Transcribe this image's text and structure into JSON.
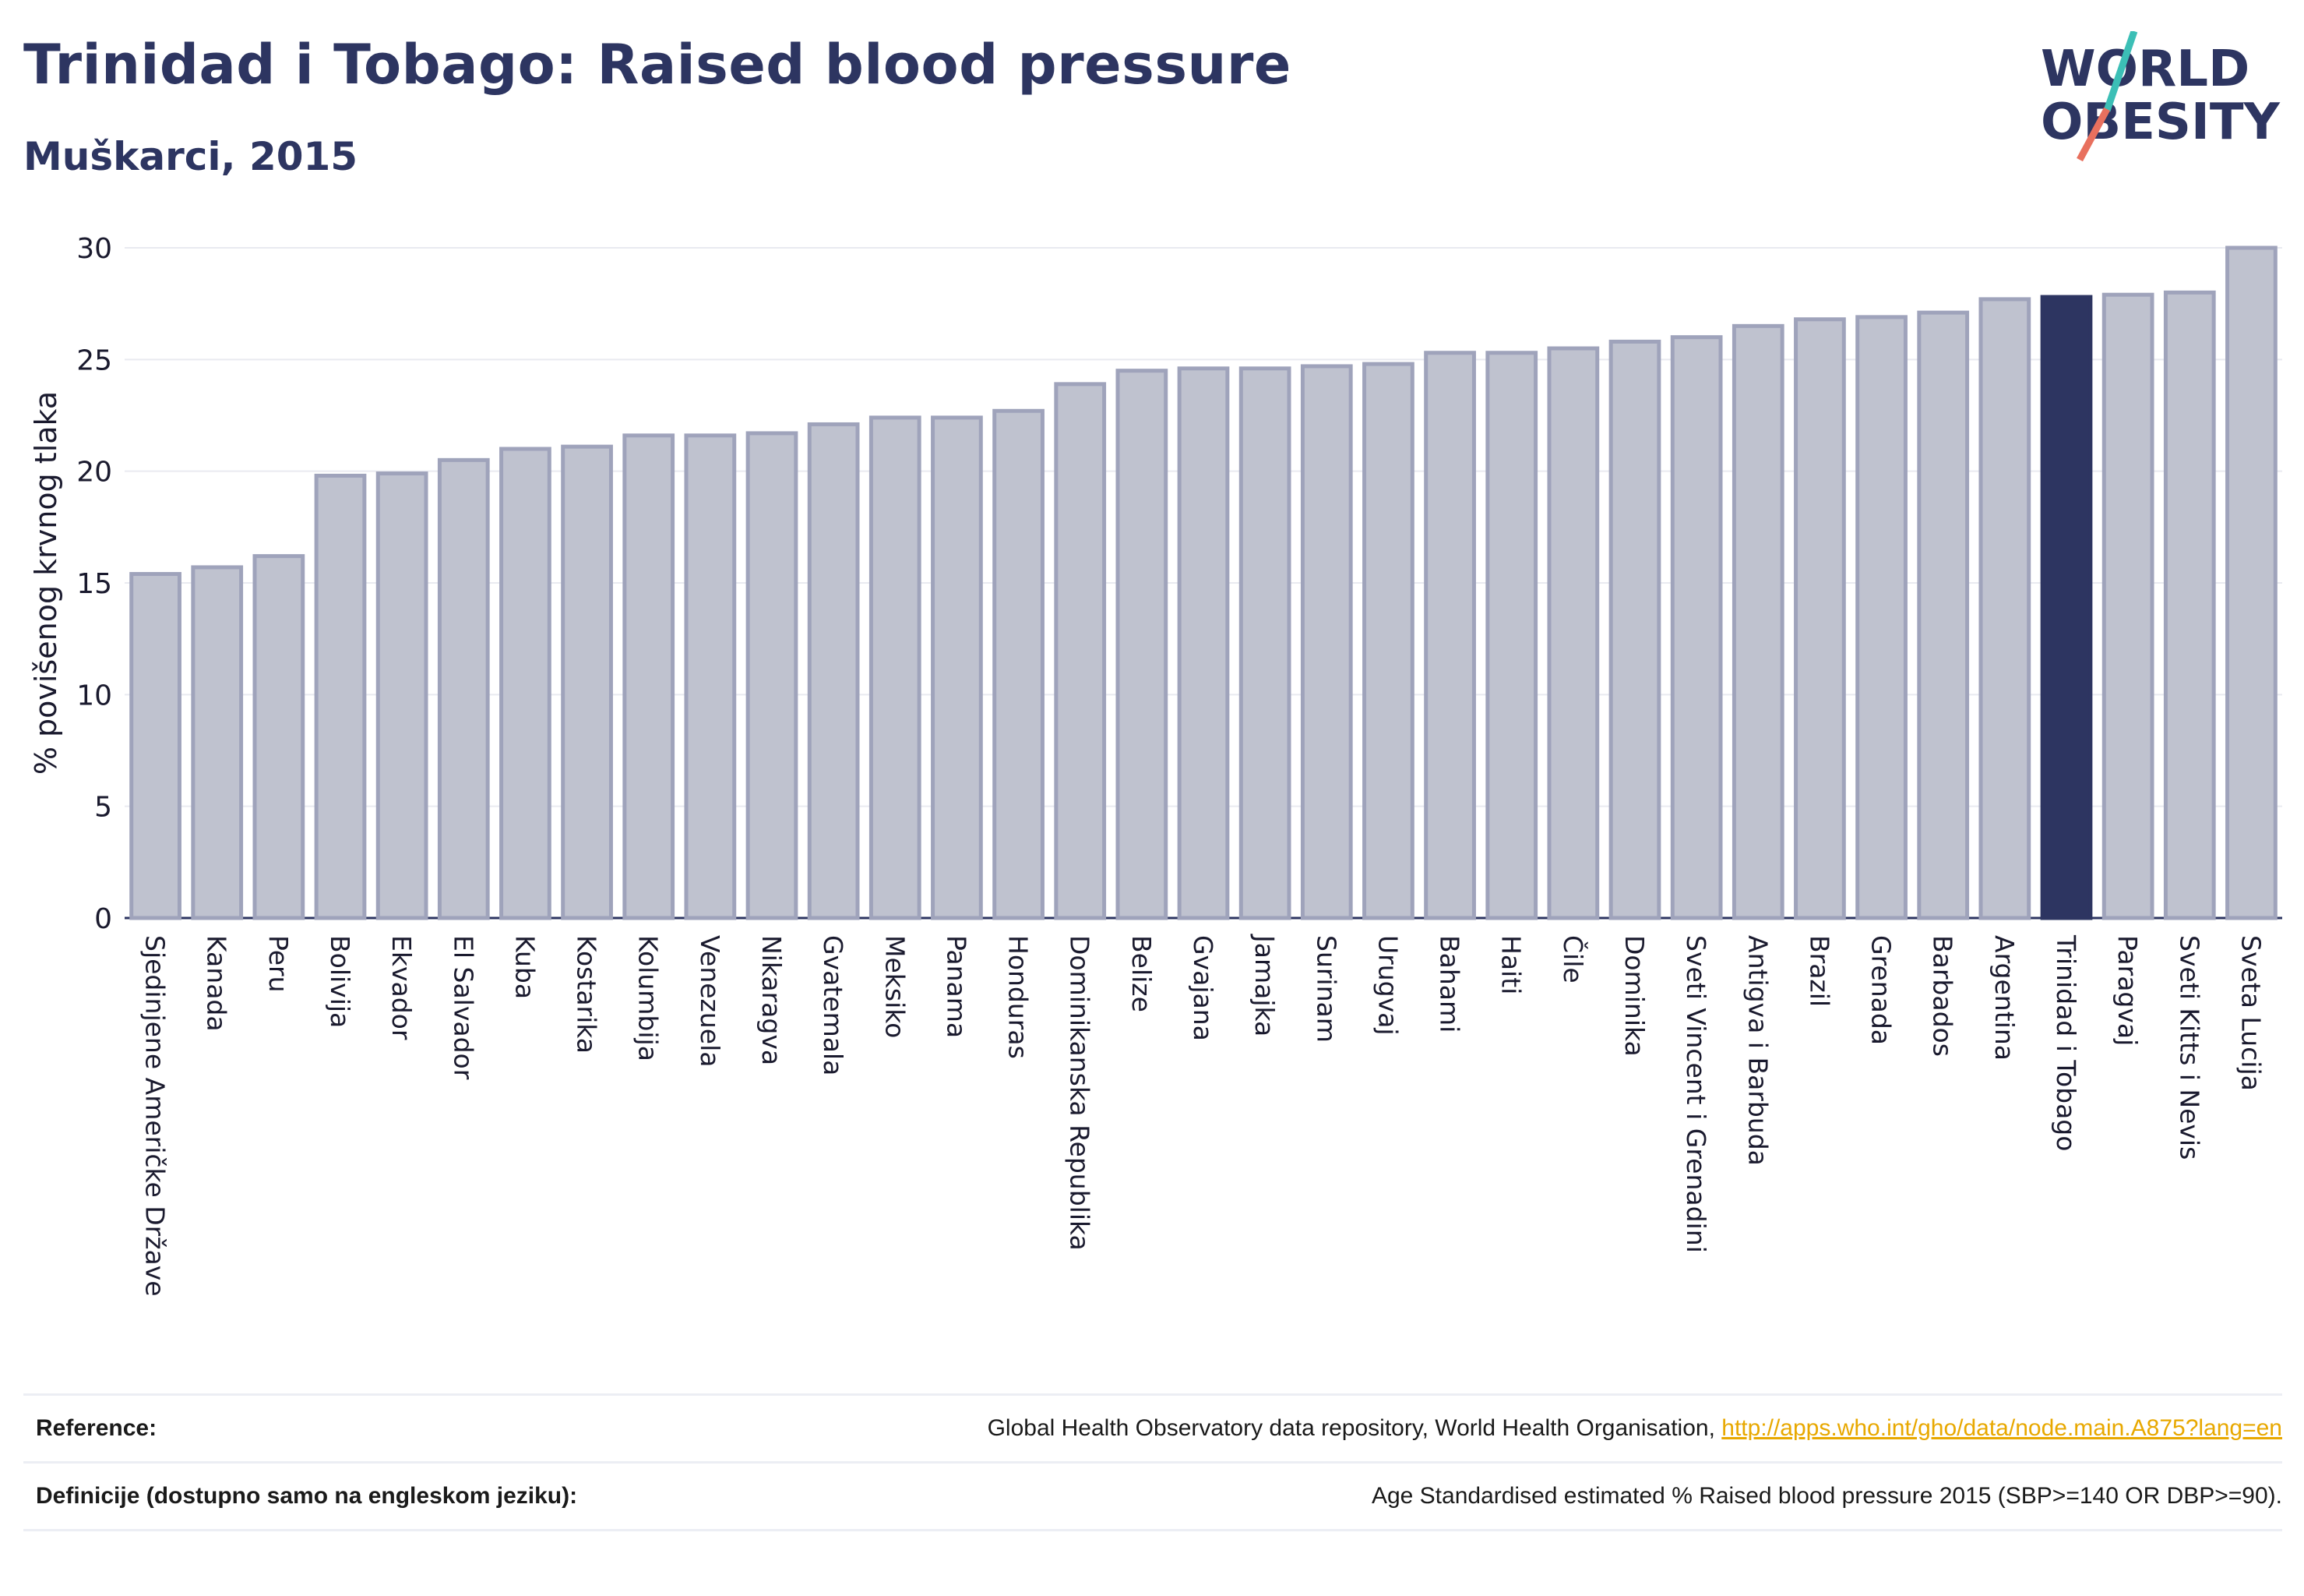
{
  "header": {
    "title": "Trinidad i Tobago: Raised blood pressure",
    "subtitle": "Muškarci, 2015"
  },
  "logo": {
    "line1": "WORLD",
    "line2": "OBESITY",
    "colors": {
      "text": "#2d3561",
      "slash_teal": "#3cbfb6",
      "slash_red": "#e8705e"
    }
  },
  "colors": {
    "bar_fill": "#bfc2cf",
    "bar_stroke": "#9fa3bb",
    "highlight_fill": "#2d3561",
    "axis_text": "#1a1a2e",
    "grid": "#e9eaf0"
  },
  "chart_data": {
    "type": "bar",
    "ylabel": "% povišenog krvnog tlaka",
    "ylim": [
      0,
      30
    ],
    "yticks": [
      0,
      5,
      10,
      15,
      20,
      25,
      30
    ],
    "grid": true,
    "highlight": "Trinidad i Tobago",
    "categories": [
      "Sjedinjene Američke Države",
      "Kanada",
      "Peru",
      "Bolivija",
      "Ekvador",
      "El Salvador",
      "Kuba",
      "Kostarika",
      "Kolumbija",
      "Venezuela",
      "Nikaragva",
      "Gvatemala",
      "Meksiko",
      "Panama",
      "Honduras",
      "Dominikanska Republika",
      "Belize",
      "Gvajana",
      "Jamajka",
      "Surinam",
      "Urugvaj",
      "Bahami",
      "Haiti",
      "Čile",
      "Dominika",
      "Sveti Vincent i Grenadini",
      "Antigva i Barbuda",
      "Brazil",
      "Grenada",
      "Barbados",
      "Argentina",
      "Trinidad i Tobago",
      "Paragvaj",
      "Sveti Kitts i Nevis",
      "Sveta Lucija"
    ],
    "values": [
      15.4,
      15.7,
      16.2,
      19.8,
      19.9,
      20.5,
      21.0,
      21.1,
      21.6,
      21.6,
      21.7,
      22.1,
      22.4,
      22.4,
      22.7,
      23.9,
      24.5,
      24.6,
      24.6,
      24.7,
      24.8,
      25.3,
      25.3,
      25.5,
      25.8,
      26.0,
      26.5,
      26.8,
      26.9,
      27.1,
      27.7,
      27.8,
      27.9,
      28.0,
      30.0
    ]
  },
  "reference": {
    "label": "Reference:",
    "text": "Global Health Observatory data repository, World Health Organisation,",
    "link": "http://apps.who.int/gho/data/node.main.A875?lang=en"
  },
  "definition": {
    "label": "Definicije (dostupno samo na engleskom jeziku):",
    "text": "Age Standardised estimated % Raised blood pressure 2015 (SBP>=140 OR DBP>=90)."
  }
}
